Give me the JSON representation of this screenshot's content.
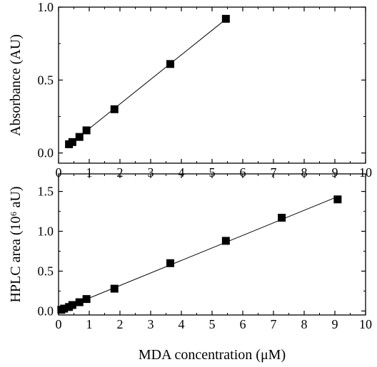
{
  "chart_data": [
    {
      "type": "scatter",
      "title": "",
      "xlabel": "",
      "ylabel": "Absorbance (AU)",
      "xlim": [
        0,
        10
      ],
      "ylim": [
        -0.07,
        1.0
      ],
      "xticks": [
        "0",
        "1",
        "2",
        "3",
        "4",
        "5",
        "6",
        "7",
        "8",
        "9",
        "10"
      ],
      "yticks": [
        "0.0",
        "0.5",
        "1.0"
      ],
      "grid": false,
      "legend": "none",
      "fit_line": true,
      "marker": "filled-square",
      "color": "#000000",
      "series": [
        {
          "points": [
            {
              "x": 0.34,
              "y": 0.06
            },
            {
              "x": 0.45,
              "y": 0.075
            },
            {
              "x": 0.68,
              "y": 0.11
            },
            {
              "x": 0.91,
              "y": 0.155
            },
            {
              "x": 1.82,
              "y": 0.3
            },
            {
              "x": 3.64,
              "y": 0.61
            },
            {
              "x": 5.45,
              "y": 0.92
            }
          ]
        }
      ]
    },
    {
      "type": "scatter",
      "title": "",
      "xlabel": "MDA concentration (μM)",
      "ylabel": "HPLC area (10⁶ aU)",
      "xlim": [
        0,
        10
      ],
      "ylim": [
        -0.05,
        1.72
      ],
      "xticks": [
        "0",
        "1",
        "2",
        "3",
        "4",
        "5",
        "6",
        "7",
        "8",
        "9",
        "10"
      ],
      "yticks": [
        "0.0",
        "0.5",
        "1.0",
        "1.5"
      ],
      "grid": false,
      "legend": "none",
      "fit_line": true,
      "marker": "filled-square",
      "color": "#000000",
      "series": [
        {
          "points": [
            {
              "x": 0.09,
              "y": 0.015
            },
            {
              "x": 0.18,
              "y": 0.03
            },
            {
              "x": 0.34,
              "y": 0.05
            },
            {
              "x": 0.45,
              "y": 0.075
            },
            {
              "x": 0.68,
              "y": 0.11
            },
            {
              "x": 0.91,
              "y": 0.15
            },
            {
              "x": 1.82,
              "y": 0.28
            },
            {
              "x": 3.64,
              "y": 0.6
            },
            {
              "x": 5.45,
              "y": 0.88
            },
            {
              "x": 7.27,
              "y": 1.17
            },
            {
              "x": 9.09,
              "y": 1.4
            }
          ]
        }
      ]
    }
  ]
}
